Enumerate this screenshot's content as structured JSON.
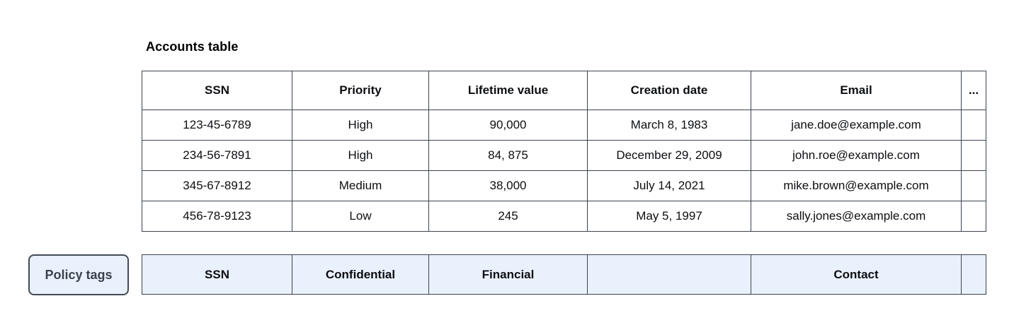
{
  "page": {
    "title": "Accounts table"
  },
  "accounts_table": {
    "headers": [
      "SSN",
      "Priority",
      "Lifetime value",
      "Creation date",
      "Email",
      "..."
    ],
    "rows": [
      [
        "123-45-6789",
        "High",
        "90,000",
        "March 8, 1983",
        "jane.doe@example.com",
        ""
      ],
      [
        "234-56-7891",
        "High",
        "84, 875",
        "December 29, 2009",
        "john.roe@example.com",
        ""
      ],
      [
        "345-67-8912",
        "Medium",
        "38,000",
        "July 14, 2021",
        "mike.brown@example.com",
        ""
      ],
      [
        "456-78-9123",
        "Low",
        "245",
        "May 5, 1997",
        "sally.jones@example.com",
        ""
      ]
    ]
  },
  "policy_tags": {
    "button_label": "Policy tags",
    "tags": [
      "SSN",
      "Confidential",
      "Financial",
      "",
      "Contact",
      ""
    ]
  },
  "colors": {
    "policy_row_background": "#e9f1fc",
    "table_border": "#3c434d",
    "button_border": "#434a54",
    "button_text": "#3a424e"
  }
}
